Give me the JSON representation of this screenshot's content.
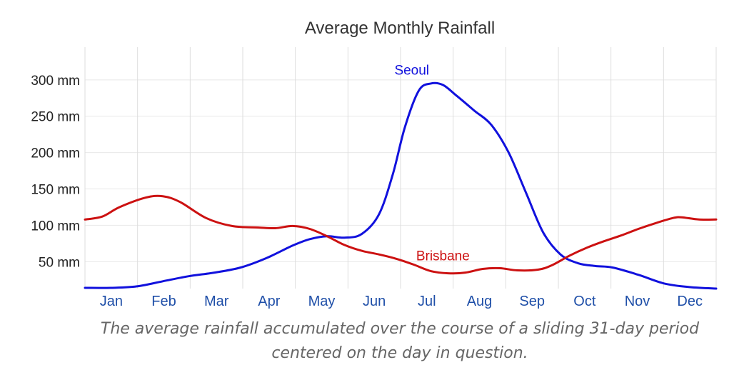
{
  "chart_data": {
    "type": "line",
    "title": "Average Monthly Rainfall",
    "xlabel": "",
    "ylabel": "",
    "y_unit": "mm",
    "ylim": [
      13,
      345
    ],
    "y_ticks": [
      50,
      100,
      150,
      200,
      250,
      300
    ],
    "y_tick_labels": [
      "50 mm",
      "100 mm",
      "150 mm",
      "200 mm",
      "250 mm",
      "300 mm"
    ],
    "categories": [
      "Jan",
      "Feb",
      "Mar",
      "Apr",
      "May",
      "Jun",
      "Jul",
      "Aug",
      "Sep",
      "Oct",
      "Nov",
      "Dec"
    ],
    "grid": true,
    "x_day_range": [
      0,
      365
    ],
    "series": [
      {
        "name": "Seoul",
        "label": "Seoul",
        "color": "#1111dd",
        "label_day": 189,
        "label_value": 307,
        "points": [
          [
            0,
            14
          ],
          [
            15,
            14
          ],
          [
            30,
            16
          ],
          [
            45,
            23
          ],
          [
            60,
            30
          ],
          [
            75,
            35
          ],
          [
            90,
            42
          ],
          [
            105,
            55
          ],
          [
            120,
            72
          ],
          [
            130,
            81
          ],
          [
            140,
            85
          ],
          [
            150,
            83
          ],
          [
            160,
            88
          ],
          [
            170,
            115
          ],
          [
            178,
            170
          ],
          [
            185,
            235
          ],
          [
            193,
            285
          ],
          [
            200,
            295
          ],
          [
            207,
            293
          ],
          [
            215,
            278
          ],
          [
            225,
            258
          ],
          [
            235,
            238
          ],
          [
            245,
            200
          ],
          [
            255,
            145
          ],
          [
            265,
            90
          ],
          [
            275,
            60
          ],
          [
            285,
            48
          ],
          [
            295,
            44
          ],
          [
            305,
            42
          ],
          [
            320,
            32
          ],
          [
            335,
            20
          ],
          [
            350,
            15
          ],
          [
            365,
            13
          ]
        ]
      },
      {
        "name": "Brisbane",
        "label": "Brisbane",
        "color": "#cc1111",
        "label_day": 207,
        "label_value": 52,
        "points": [
          [
            0,
            108
          ],
          [
            10,
            112
          ],
          [
            20,
            125
          ],
          [
            35,
            138
          ],
          [
            45,
            140
          ],
          [
            55,
            132
          ],
          [
            70,
            110
          ],
          [
            85,
            99
          ],
          [
            100,
            97
          ],
          [
            110,
            96
          ],
          [
            120,
            99
          ],
          [
            130,
            95
          ],
          [
            140,
            85
          ],
          [
            150,
            73
          ],
          [
            160,
            65
          ],
          [
            170,
            60
          ],
          [
            180,
            54
          ],
          [
            190,
            46
          ],
          [
            200,
            37
          ],
          [
            210,
            34
          ],
          [
            220,
            35
          ],
          [
            230,
            40
          ],
          [
            240,
            41
          ],
          [
            250,
            38
          ],
          [
            262,
            39
          ],
          [
            270,
            45
          ],
          [
            280,
            58
          ],
          [
            290,
            69
          ],
          [
            300,
            78
          ],
          [
            310,
            86
          ],
          [
            320,
            95
          ],
          [
            330,
            103
          ],
          [
            340,
            110
          ],
          [
            345,
            111
          ],
          [
            355,
            108
          ],
          [
            365,
            108
          ]
        ]
      }
    ]
  },
  "caption": "The average rainfall accumulated over the course of a sliding 31-day period centered on the day in question."
}
